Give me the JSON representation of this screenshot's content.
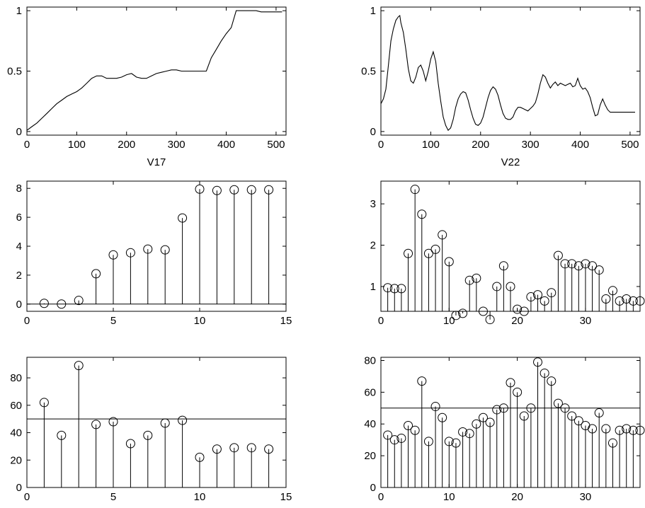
{
  "figure": {
    "panels": [
      "V17",
      "V22"
    ]
  },
  "chart_data": [
    {
      "type": "line",
      "title": "",
      "xlabel": "V17",
      "ylabel": "",
      "xlim": [
        0,
        520
      ],
      "ylim": [
        -0.03,
        1.03
      ],
      "xticks": [
        0,
        100,
        200,
        300,
        400,
        500
      ],
      "yticks": [
        0,
        0.5,
        1
      ],
      "ytick_labels": [
        "0",
        "0.5",
        "1"
      ],
      "x": [
        0,
        10,
        20,
        30,
        40,
        50,
        60,
        70,
        80,
        90,
        100,
        110,
        120,
        130,
        140,
        150,
        160,
        170,
        180,
        190,
        200,
        210,
        220,
        230,
        240,
        250,
        260,
        270,
        280,
        290,
        300,
        310,
        320,
        330,
        340,
        350,
        360,
        370,
        380,
        390,
        400,
        410,
        420,
        430,
        440,
        450,
        460,
        470,
        480,
        490,
        500,
        512
      ],
      "y": [
        0.01,
        0.04,
        0.07,
        0.11,
        0.15,
        0.19,
        0.23,
        0.26,
        0.29,
        0.31,
        0.33,
        0.36,
        0.4,
        0.44,
        0.46,
        0.46,
        0.44,
        0.44,
        0.44,
        0.45,
        0.47,
        0.48,
        0.45,
        0.44,
        0.44,
        0.46,
        0.48,
        0.49,
        0.5,
        0.51,
        0.51,
        0.5,
        0.5,
        0.5,
        0.5,
        0.5,
        0.5,
        0.61,
        0.68,
        0.75,
        0.81,
        0.86,
        1.0,
        1.0,
        1.0,
        1.0,
        1.0,
        0.99,
        0.99,
        0.99,
        0.99,
        0.99
      ]
    },
    {
      "type": "line",
      "title": "",
      "xlabel": "V22",
      "ylabel": "",
      "xlim": [
        0,
        520
      ],
      "ylim": [
        -0.03,
        1.03
      ],
      "xticks": [
        0,
        100,
        200,
        300,
        400,
        500
      ],
      "yticks": [
        0,
        0.5,
        1
      ],
      "ytick_labels": [
        "0",
        "0.5",
        "1"
      ],
      "x": [
        0,
        5,
        10,
        15,
        20,
        25,
        30,
        35,
        38,
        40,
        45,
        50,
        55,
        60,
        65,
        70,
        75,
        80,
        85,
        90,
        95,
        100,
        105,
        110,
        115,
        120,
        125,
        130,
        135,
        140,
        145,
        150,
        155,
        160,
        165,
        170,
        175,
        180,
        185,
        190,
        195,
        200,
        205,
        210,
        215,
        220,
        225,
        230,
        235,
        240,
        245,
        250,
        255,
        260,
        265,
        270,
        275,
        280,
        285,
        290,
        295,
        300,
        305,
        310,
        315,
        320,
        325,
        330,
        335,
        340,
        345,
        350,
        355,
        360,
        365,
        370,
        375,
        380,
        385,
        390,
        395,
        400,
        405,
        410,
        415,
        420,
        425,
        430,
        435,
        440,
        445,
        450,
        455,
        460,
        465,
        470,
        475,
        480,
        485,
        490,
        495,
        500,
        505,
        510
      ],
      "y": [
        0.23,
        0.27,
        0.35,
        0.55,
        0.75,
        0.85,
        0.92,
        0.95,
        0.96,
        0.9,
        0.82,
        0.68,
        0.52,
        0.42,
        0.4,
        0.45,
        0.53,
        0.55,
        0.5,
        0.42,
        0.5,
        0.6,
        0.66,
        0.58,
        0.4,
        0.25,
        0.12,
        0.05,
        0.01,
        0.03,
        0.1,
        0.2,
        0.27,
        0.31,
        0.33,
        0.32,
        0.26,
        0.18,
        0.11,
        0.06,
        0.05,
        0.07,
        0.12,
        0.2,
        0.28,
        0.34,
        0.37,
        0.35,
        0.3,
        0.22,
        0.15,
        0.11,
        0.1,
        0.1,
        0.12,
        0.17,
        0.2,
        0.2,
        0.19,
        0.18,
        0.17,
        0.19,
        0.21,
        0.24,
        0.31,
        0.4,
        0.47,
        0.45,
        0.4,
        0.36,
        0.39,
        0.41,
        0.38,
        0.4,
        0.39,
        0.38,
        0.39,
        0.4,
        0.37,
        0.38,
        0.44,
        0.38,
        0.35,
        0.36,
        0.33,
        0.28,
        0.2,
        0.13,
        0.14,
        0.22,
        0.27,
        0.22,
        0.18,
        0.16,
        0.16,
        0.16,
        0.16,
        0.16,
        0.16,
        0.16,
        0.16,
        0.16,
        0.16,
        0.16
      ],
      "x_end": 510
    },
    {
      "type": "stem",
      "title": "",
      "xlabel": "",
      "ylabel": "",
      "xlim": [
        0,
        15
      ],
      "ylim": [
        -0.5,
        8.5
      ],
      "xticks": [
        0,
        5,
        10,
        15
      ],
      "yticks": [
        0,
        2,
        4,
        6,
        8
      ],
      "baseline": 0,
      "x": [
        1,
        2,
        3,
        4,
        5,
        6,
        7,
        8,
        9,
        10,
        11,
        12,
        13,
        14
      ],
      "y": [
        0.05,
        0.0,
        0.25,
        2.1,
        3.4,
        3.55,
        3.8,
        3.75,
        5.95,
        7.95,
        7.85,
        7.9,
        7.9,
        7.9
      ]
    },
    {
      "type": "stem",
      "title": "",
      "xlabel": "",
      "ylabel": "",
      "xlim": [
        0,
        38
      ],
      "ylim": [
        0.4,
        3.55
      ],
      "xticks": [
        0,
        10,
        20,
        30
      ],
      "yticks": [
        1,
        2,
        3
      ],
      "baseline": 0.4,
      "x": [
        1,
        2,
        3,
        4,
        5,
        6,
        7,
        8,
        9,
        10,
        11,
        12,
        13,
        14,
        15,
        16,
        17,
        18,
        19,
        20,
        21,
        22,
        23,
        24,
        25,
        26,
        27,
        28,
        29,
        30,
        31,
        32,
        33,
        34,
        35,
        36,
        37,
        38
      ],
      "y": [
        0.97,
        0.95,
        0.95,
        1.8,
        3.35,
        2.75,
        1.8,
        1.9,
        2.25,
        1.6,
        0.3,
        0.35,
        1.15,
        1.2,
        0.4,
        0.2,
        1.0,
        1.5,
        1.0,
        0.45,
        0.4,
        0.75,
        0.8,
        0.65,
        0.85,
        1.75,
        1.55,
        1.55,
        1.5,
        1.55,
        1.5,
        1.4,
        0.7,
        0.9,
        0.65,
        0.7,
        0.65,
        0.65
      ]
    },
    {
      "type": "stem",
      "title": "",
      "xlabel": "",
      "ylabel": "",
      "xlim": [
        0,
        15
      ],
      "ylim": [
        0,
        95
      ],
      "xticks": [
        0,
        5,
        10,
        15
      ],
      "yticks": [
        0,
        20,
        40,
        60,
        80
      ],
      "baseline": 0,
      "reference_line": 50,
      "x": [
        1,
        2,
        3,
        4,
        5,
        6,
        7,
        8,
        9,
        10,
        11,
        12,
        13,
        14
      ],
      "y": [
        62,
        38,
        89,
        46,
        48,
        32,
        38,
        47,
        49,
        22,
        28,
        29,
        29,
        28
      ]
    },
    {
      "type": "stem",
      "title": "",
      "xlabel": "",
      "ylabel": "",
      "xlim": [
        0,
        38
      ],
      "ylim": [
        0,
        82
      ],
      "xticks": [
        0,
        10,
        20,
        30
      ],
      "yticks": [
        0,
        20,
        40,
        60,
        80
      ],
      "baseline": 0,
      "reference_line": 50,
      "x": [
        1,
        2,
        3,
        4,
        5,
        6,
        7,
        8,
        9,
        10,
        11,
        12,
        13,
        14,
        15,
        16,
        17,
        18,
        19,
        20,
        21,
        22,
        23,
        24,
        25,
        26,
        27,
        28,
        29,
        30,
        31,
        32,
        33,
        34,
        35,
        36,
        37,
        38
      ],
      "y": [
        33,
        30,
        31,
        39,
        36,
        67,
        29,
        51,
        44,
        29,
        28,
        35,
        34,
        40,
        44,
        41,
        49,
        50,
        66,
        60,
        45,
        50,
        79,
        72,
        67,
        53,
        50,
        45,
        42,
        39,
        37,
        47,
        37,
        28,
        36,
        37,
        36,
        36
      ]
    }
  ]
}
